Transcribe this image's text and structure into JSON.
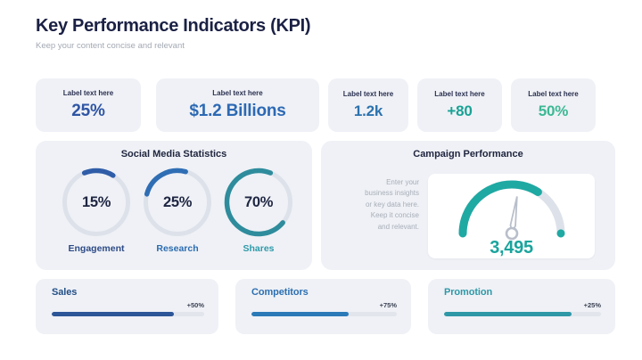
{
  "header": {
    "title": "Key Performance Indicators (KPI)",
    "subtitle": "Keep your content concise and relevant"
  },
  "colors": {
    "page_bg": "#ffffff",
    "card_bg": "#eff1f6",
    "heading": "#1b2144",
    "subtitle": "#a3a9b3",
    "ring_track": "#dde2ea",
    "bar_track": "#e2e6ec",
    "needle": "#b9bfca"
  },
  "kpi_cards": [
    {
      "label": "Label text here",
      "value": "25%",
      "color": "#2f55a4"
    },
    {
      "label": "Label text here",
      "value": "$1.2 Billions",
      "color": "#2c69b4"
    },
    {
      "label": "Label text here",
      "value": "1.2k",
      "color": "#2c72ae"
    },
    {
      "label": "Label text here",
      "value": "+80",
      "color": "#18a295"
    },
    {
      "label": "Label text here",
      "value": "50%",
      "color": "#3cb894"
    }
  ],
  "social": {
    "title": "Social Media Statistics",
    "donuts": [
      {
        "display": "15%",
        "value": 15,
        "label": "Engagement",
        "arc_color": "#2f5da8",
        "label_color": "#2d4a86",
        "rotation": 248
      },
      {
        "display": "25%",
        "value": 25,
        "label": "Research",
        "arc_color": "#2f6eb4",
        "label_color": "#2b6cb0",
        "rotation": 195
      },
      {
        "display": "70%",
        "value": 70,
        "label": "Shares",
        "arc_color": "#2e8c9c",
        "label_color": "#2e9aa9",
        "rotation": 40
      }
    ]
  },
  "campaign": {
    "title": "Campaign Performance",
    "description_lines": [
      "Enter your",
      "business insights",
      "or key data here.",
      "Keep it concise",
      "and relevant."
    ],
    "gauge": {
      "value_display": "3,495",
      "fill_percent": 68,
      "needle_angle_deg": 8,
      "arc_color": "#1fa9a3",
      "value_color": "#1aa49d",
      "track_color": "#dde2ea"
    }
  },
  "progress_cards": [
    {
      "label": "Sales",
      "badge": "+50%",
      "fill_percent": 80,
      "label_color": "#234f86",
      "bar_color": "#2c5697"
    },
    {
      "label": "Competitors",
      "badge": "+75%",
      "fill_percent": 67,
      "label_color": "#2c6fb0",
      "bar_color": "#2b7ab8"
    },
    {
      "label": "Promotion",
      "badge": "+25%",
      "fill_percent": 81,
      "label_color": "#2e98a7",
      "bar_color": "#2e98a7"
    }
  ],
  "chart_data": [
    {
      "type": "pie",
      "subtype": "donut-gauges",
      "title": "Social Media Statistics",
      "categories": [
        "Engagement",
        "Research",
        "Shares"
      ],
      "values": [
        15,
        25,
        70
      ],
      "unit": "%",
      "legend_position": "below-each-donut"
    },
    {
      "type": "pie",
      "subtype": "semicircle-gauge",
      "title": "Campaign Performance",
      "value": 3495,
      "value_display": "3,495",
      "fill_percent_of_semicircle": 68
    },
    {
      "type": "bar",
      "subtype": "horizontal-progress",
      "categories": [
        "Sales",
        "Competitors",
        "Promotion"
      ],
      "labels": [
        "+50%",
        "+75%",
        "+25%"
      ],
      "fill_percents": [
        80,
        67,
        81
      ]
    },
    {
      "type": "table",
      "subtype": "kpi-badges",
      "categories": [
        "Label text here",
        "Label text here",
        "Label text here",
        "Label text here",
        "Label text here"
      ],
      "values": [
        "25%",
        "$1.2 Billions",
        "1.2k",
        "+80",
        "50%"
      ]
    }
  ]
}
